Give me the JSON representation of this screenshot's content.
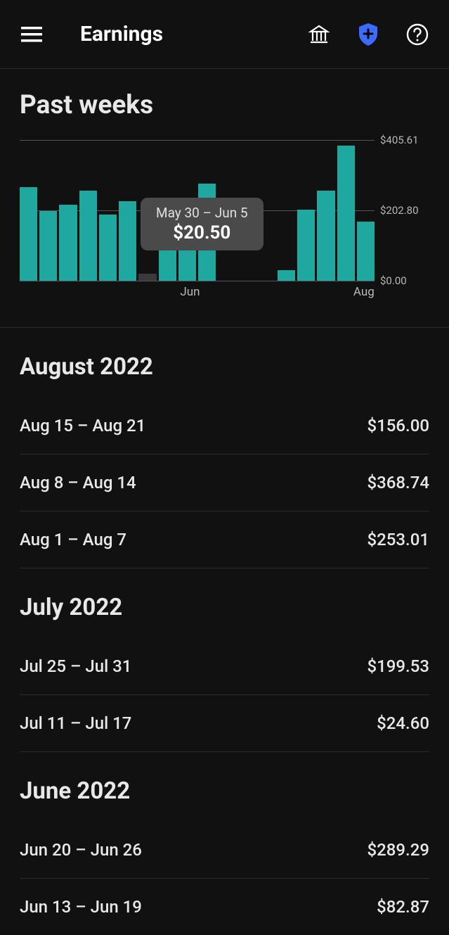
{
  "header": {
    "title": "Earnings"
  },
  "chart": {
    "title": "Past weeks",
    "type": "bar",
    "ymax": 405.61,
    "ylabels": [
      {
        "text": "$405.61",
        "value": 405.61
      },
      {
        "text": "$202.80",
        "value": 202.8
      },
      {
        "text": "$0.00",
        "value": 0.0
      }
    ],
    "gridlines": [
      405.61,
      202.8,
      0.0
    ],
    "gridline_color": "#555555",
    "bar_color": "#1ea8a0",
    "bar_color_highlight": "#3a3a3a",
    "background_color": "#111111",
    "bars": [
      270,
      200,
      220,
      260,
      190,
      230,
      20.5,
      140,
      230,
      280,
      0,
      0,
      0,
      30,
      205,
      260,
      390,
      170
    ],
    "highlighted_index": 6,
    "xlabels": [
      {
        "text": "Jun",
        "pos_pct": 48
      },
      {
        "text": "Aug",
        "pos_pct": 97
      }
    ],
    "tooltip": {
      "title": "May 30 – Jun 5",
      "value": "$20.50"
    }
  },
  "months": [
    {
      "label": "August 2022",
      "weeks": [
        {
          "range": "Aug 15 – Aug 21",
          "amount": "$156.00"
        },
        {
          "range": "Aug 8 – Aug 14",
          "amount": "$368.74"
        },
        {
          "range": "Aug 1 – Aug 7",
          "amount": "$253.01"
        }
      ]
    },
    {
      "label": "July 2022",
      "weeks": [
        {
          "range": "Jul 25 – Jul 31",
          "amount": "$199.53"
        },
        {
          "range": "Jul 11 – Jul 17",
          "amount": "$24.60"
        }
      ]
    },
    {
      "label": "June 2022",
      "weeks": [
        {
          "range": "Jun 20 – Jun 26",
          "amount": "$289.29"
        },
        {
          "range": "Jun 13 – Jun 19",
          "amount": "$82.87"
        }
      ]
    }
  ],
  "colors": {
    "background": "#111111",
    "text_primary": "#e8e8e8",
    "text_secondary": "#b8b8b8",
    "divider": "#2a2a2a",
    "accent_shield": "#3b6bff"
  }
}
